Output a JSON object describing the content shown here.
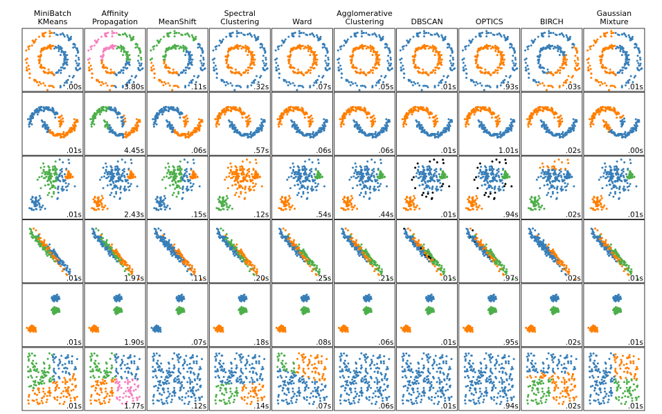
{
  "columns": [
    [
      "MiniBatch",
      "KMeans"
    ],
    [
      "Affinity",
      "Propagation"
    ],
    [
      "MeanShift"
    ],
    [
      "Spectral",
      "Clustering"
    ],
    [
      "Ward"
    ],
    [
      "Agglomerative",
      "Clustering"
    ],
    [
      "DBSCAN"
    ],
    [
      "OPTICS"
    ],
    [
      "BIRCH"
    ],
    [
      "Gaussian",
      "Mixture"
    ]
  ],
  "timings": [
    [
      ".00s",
      "3.80s",
      ".11s",
      ".32s",
      ".07s",
      ".05s",
      ".01s",
      ".93s",
      ".03s",
      ".01s"
    ],
    [
      ".01s",
      "4.45s",
      ".06s",
      ".57s",
      ".06s",
      ".06s",
      ".01s",
      "1.01s",
      ".02s",
      ".00s"
    ],
    [
      ".01s",
      "2.43s",
      ".15s",
      ".12s",
      ".54s",
      ".44s",
      ".01s",
      ".94s",
      ".02s",
      ".01s"
    ],
    [
      ".01s",
      "1.97s",
      ".11s",
      ".20s",
      ".25s",
      ".21s",
      ".01s",
      ".97s",
      ".02s",
      ".01s"
    ],
    [
      ".01s",
      "1.90s",
      ".07s",
      ".18s",
      ".08s",
      ".06s",
      ".01s",
      ".95s",
      ".02s",
      ".01s"
    ],
    [
      ".01s",
      "1.77s",
      ".12s",
      ".14s",
      ".07s",
      ".06s",
      ".01s",
      ".94s",
      ".02s",
      ".01s"
    ]
  ]
}
